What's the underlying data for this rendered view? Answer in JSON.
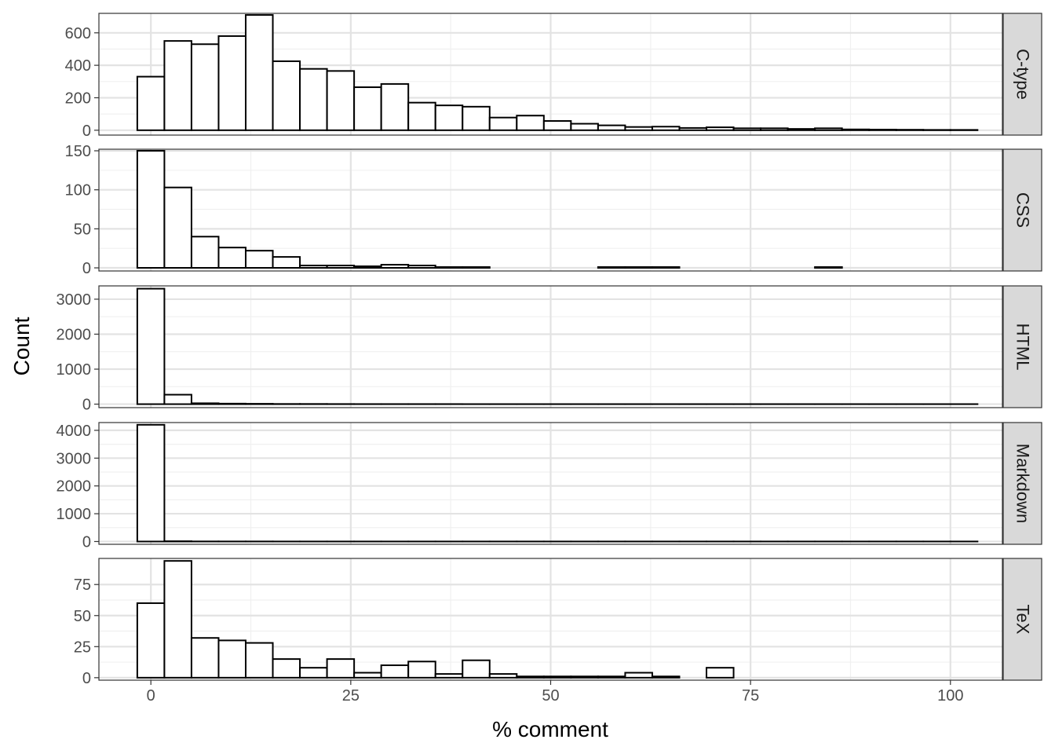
{
  "chart_data": {
    "type": "bar",
    "subtype": "faceted-histogram",
    "xlabel": "% comment",
    "ylabel": "Count",
    "xlim": [
      -6.5,
      106.5
    ],
    "x_ticks": [
      0,
      25,
      50,
      75,
      100
    ],
    "bin_width": 3.39,
    "bin_start": -1.7,
    "grid": true,
    "facets": [
      {
        "name": "C-type",
        "ylim": [
          -30,
          720
        ],
        "y_ticks": [
          0,
          200,
          400,
          600
        ],
        "values": [
          330,
          550,
          530,
          580,
          710,
          425,
          378,
          365,
          265,
          285,
          170,
          153,
          145,
          78,
          90,
          57,
          40,
          30,
          20,
          22,
          14,
          18,
          12,
          12,
          8,
          12,
          5,
          4,
          3,
          2,
          2
        ]
      },
      {
        "name": "CSS",
        "ylim": [
          -4,
          152
        ],
        "y_ticks": [
          0,
          50,
          100,
          150
        ],
        "values": [
          150,
          103,
          40,
          26,
          22,
          14,
          3,
          3,
          2,
          4,
          3,
          1,
          1,
          0,
          0,
          0,
          0,
          1,
          1,
          1,
          0,
          0,
          0,
          0,
          0,
          1,
          0,
          0,
          0,
          0,
          0
        ]
      },
      {
        "name": "HTML",
        "ylim": [
          -100,
          3380
        ],
        "y_ticks": [
          0,
          1000,
          2000,
          3000
        ],
        "values": [
          3300,
          270,
          25,
          15,
          10,
          5,
          5,
          3,
          2,
          2,
          2,
          2,
          1,
          1,
          1,
          1,
          1,
          1,
          1,
          1,
          1,
          1,
          1,
          1,
          1,
          1,
          1,
          1,
          1,
          1,
          1
        ]
      },
      {
        "name": "Markdown",
        "ylim": [
          -100,
          4280
        ],
        "y_ticks": [
          0,
          1000,
          2000,
          3000,
          4000
        ],
        "values": [
          4200,
          10,
          3,
          2,
          2,
          1,
          1,
          1,
          1,
          1,
          1,
          1,
          1,
          1,
          1,
          1,
          1,
          1,
          1,
          1,
          1,
          1,
          1,
          1,
          1,
          1,
          1,
          1,
          1,
          1,
          1
        ]
      },
      {
        "name": "TeX",
        "ylim": [
          -2,
          96
        ],
        "y_ticks": [
          0,
          25,
          50,
          75
        ],
        "values": [
          60,
          94,
          32,
          30,
          28,
          15,
          8,
          15,
          4,
          10,
          13,
          3,
          14,
          3,
          1,
          1,
          1,
          1,
          4,
          1,
          0,
          8,
          0,
          0,
          0,
          0,
          0,
          0,
          0,
          0,
          0
        ]
      }
    ]
  }
}
